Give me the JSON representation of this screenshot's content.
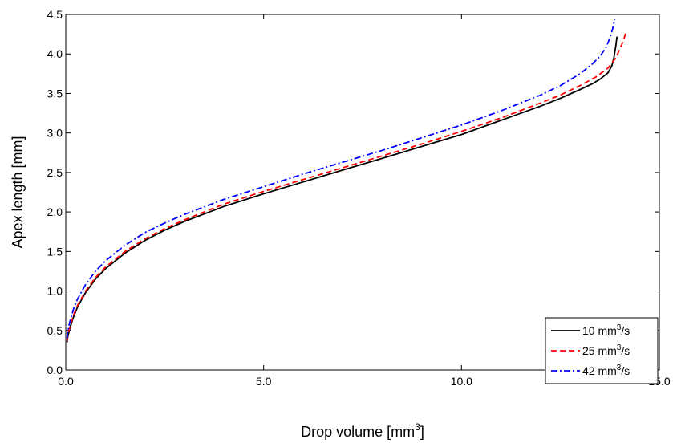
{
  "chart_data": {
    "type": "line",
    "title": "",
    "xlabel": "Drop volume [mm",
    "xlabel_sup": "3",
    "xlabel_tail": "]",
    "ylabel": "Apex length [mm]",
    "xlim": [
      0,
      15
    ],
    "ylim": [
      0,
      4.5
    ],
    "xticks": [
      0,
      5,
      10,
      15
    ],
    "xtick_labels": [
      "0.0",
      "5.0",
      "10.0",
      "15.0"
    ],
    "yticks": [
      0,
      0.5,
      1.0,
      1.5,
      2.0,
      2.5,
      3.0,
      3.5,
      4.0,
      4.5
    ],
    "ytick_labels": [
      "0.0",
      "0.5",
      "1.0",
      "1.5",
      "2.0",
      "2.5",
      "3.0",
      "3.5",
      "4.0",
      "4.5"
    ],
    "grid": false,
    "legend_position": "bottom-right",
    "series": [
      {
        "name": "10 mm",
        "name_sup": "3",
        "name_tail": "/s",
        "color": "#000000",
        "dash": "solid",
        "x": [
          0.03,
          0.05,
          0.1,
          0.2,
          0.3,
          0.5,
          0.75,
          1.0,
          1.5,
          2.0,
          2.5,
          3.0,
          4.0,
          5.0,
          6.0,
          7.0,
          8.0,
          9.0,
          10.0,
          11.0,
          12.0,
          12.5,
          13.0,
          13.3,
          13.5,
          13.7,
          13.8,
          13.85,
          13.9,
          13.93
        ],
        "y": [
          0.35,
          0.42,
          0.52,
          0.68,
          0.8,
          0.98,
          1.15,
          1.28,
          1.48,
          1.64,
          1.77,
          1.88,
          2.07,
          2.23,
          2.38,
          2.53,
          2.68,
          2.83,
          2.98,
          3.16,
          3.34,
          3.44,
          3.55,
          3.62,
          3.68,
          3.76,
          3.85,
          3.95,
          4.1,
          4.22
        ]
      },
      {
        "name": "25 mm",
        "name_sup": "3",
        "name_tail": "/s",
        "color": "#ff0000",
        "dash": "dashed",
        "x": [
          0.03,
          0.05,
          0.1,
          0.2,
          0.3,
          0.5,
          0.75,
          1.0,
          1.5,
          2.0,
          2.5,
          3.0,
          4.0,
          5.0,
          6.0,
          7.0,
          8.0,
          9.0,
          10.0,
          11.0,
          12.0,
          12.5,
          13.0,
          13.4,
          13.7,
          13.9,
          14.0,
          14.1,
          14.15
        ],
        "y": [
          0.37,
          0.44,
          0.54,
          0.7,
          0.82,
          1.0,
          1.17,
          1.3,
          1.5,
          1.66,
          1.79,
          1.9,
          2.1,
          2.26,
          2.41,
          2.56,
          2.71,
          2.86,
          3.02,
          3.19,
          3.38,
          3.48,
          3.6,
          3.71,
          3.82,
          3.95,
          4.06,
          4.18,
          4.27
        ]
      },
      {
        "name": "42 mm",
        "name_sup": "3",
        "name_tail": "/s",
        "color": "#0000ff",
        "dash": "dashdot",
        "x": [
          0.03,
          0.05,
          0.1,
          0.2,
          0.3,
          0.5,
          0.75,
          1.0,
          1.5,
          2.0,
          2.5,
          3.0,
          4.0,
          5.0,
          6.0,
          7.0,
          8.0,
          9.0,
          10.0,
          11.0,
          12.0,
          12.5,
          13.0,
          13.3,
          13.5,
          13.65,
          13.75,
          13.82,
          13.87
        ],
        "y": [
          0.4,
          0.48,
          0.6,
          0.78,
          0.9,
          1.08,
          1.25,
          1.38,
          1.58,
          1.74,
          1.86,
          1.97,
          2.16,
          2.32,
          2.48,
          2.63,
          2.78,
          2.94,
          3.1,
          3.28,
          3.48,
          3.6,
          3.75,
          3.87,
          3.97,
          4.08,
          4.2,
          4.32,
          4.44
        ]
      }
    ]
  }
}
